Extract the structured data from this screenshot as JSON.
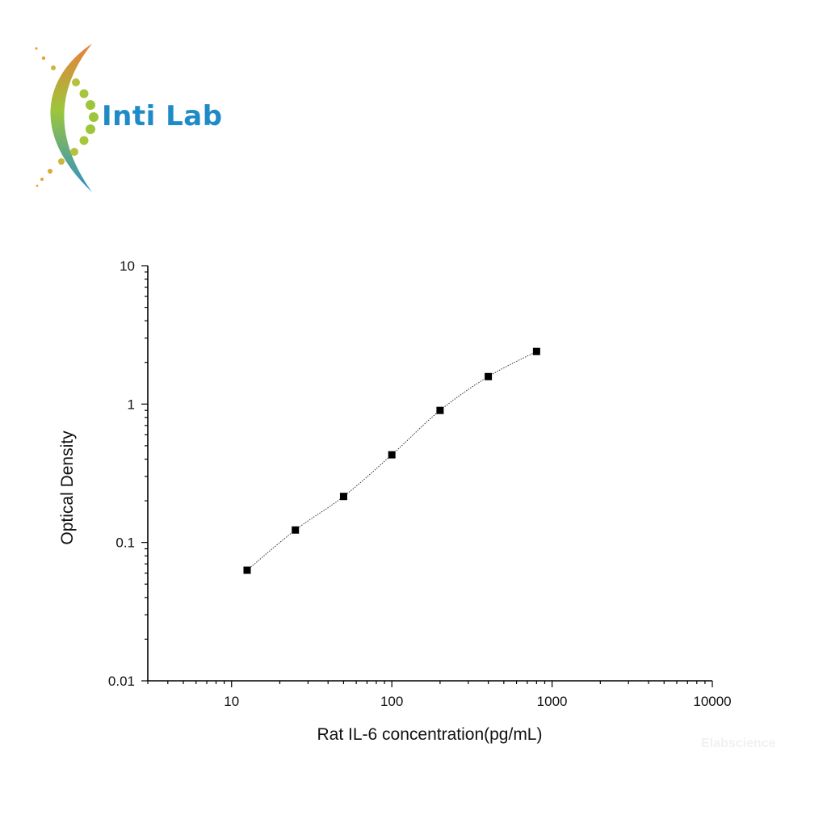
{
  "brand": {
    "name": "Inti Lab",
    "text_color": "#1f8bc6",
    "logo_colors": [
      "#e97f3a",
      "#9cc63b",
      "#2b8fc9"
    ]
  },
  "watermark": "Elabscience",
  "chart_data": {
    "type": "scatter",
    "title": "",
    "xlabel": "Rat IL-6 concentration(pg/mL)",
    "ylabel": "Optical Density",
    "x_scale": "log",
    "y_scale": "log",
    "xlim": [
      3,
      10000
    ],
    "ylim": [
      0.01,
      10
    ],
    "x_ticks": [
      10,
      100,
      1000,
      10000
    ],
    "x_tick_labels": [
      "10",
      "100",
      "1000",
      "10000"
    ],
    "y_ticks": [
      0.01,
      0.1,
      1,
      10
    ],
    "y_tick_labels": [
      "0.01",
      "0.1",
      "1",
      "10"
    ],
    "grid": false,
    "fit_line": "dotted smooth curve",
    "series": [
      {
        "marker": "square",
        "color": "#000000",
        "x": [
          12.5,
          25,
          50,
          100,
          200,
          400,
          800
        ],
        "y": [
          0.063,
          0.123,
          0.215,
          0.43,
          0.9,
          1.58,
          2.4
        ]
      }
    ]
  }
}
